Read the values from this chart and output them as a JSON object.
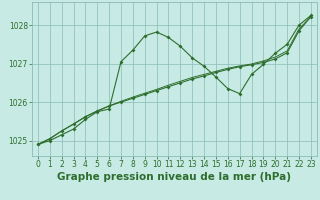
{
  "background_color": "#c8eae4",
  "grid_color": "#8bbcb8",
  "line_color": "#2d6e2d",
  "title": "Graphe pression niveau de la mer (hPa)",
  "title_color": "#2d6e2d",
  "xlim": [
    -0.5,
    23.5
  ],
  "ylim": [
    1024.6,
    1028.6
  ],
  "yticks": [
    1025,
    1026,
    1027,
    1028
  ],
  "xticks": [
    0,
    1,
    2,
    3,
    4,
    5,
    6,
    7,
    8,
    9,
    10,
    11,
    12,
    13,
    14,
    15,
    16,
    17,
    18,
    19,
    20,
    21,
    22,
    23
  ],
  "line1_y": [
    1024.9,
    1025.0,
    1025.15,
    1025.3,
    1025.55,
    1025.75,
    1025.82,
    1027.05,
    1027.35,
    1027.72,
    1027.82,
    1027.68,
    1027.45,
    1027.15,
    1026.93,
    1026.65,
    1026.35,
    1026.22,
    1026.72,
    1026.98,
    1027.27,
    1027.5,
    1028.0,
    1028.25
  ],
  "line2_y": [
    1024.9,
    1025.05,
    1025.25,
    1025.43,
    1025.62,
    1025.77,
    1025.9,
    1026.0,
    1026.1,
    1026.2,
    1026.3,
    1026.4,
    1026.5,
    1026.6,
    1026.68,
    1026.77,
    1026.85,
    1026.92,
    1026.97,
    1027.03,
    1027.12,
    1027.28,
    1027.85,
    1028.22
  ],
  "line3_y": [
    1024.9,
    1025.05,
    1025.25,
    1025.43,
    1025.62,
    1025.77,
    1025.9,
    1026.02,
    1026.13,
    1026.23,
    1026.33,
    1026.44,
    1026.54,
    1026.64,
    1026.72,
    1026.8,
    1026.88,
    1026.94,
    1026.99,
    1027.07,
    1027.17,
    1027.33,
    1027.9,
    1028.22
  ],
  "lw": 0.8,
  "ms": 2.0,
  "title_fontsize": 7.5,
  "tick_fontsize": 5.5
}
